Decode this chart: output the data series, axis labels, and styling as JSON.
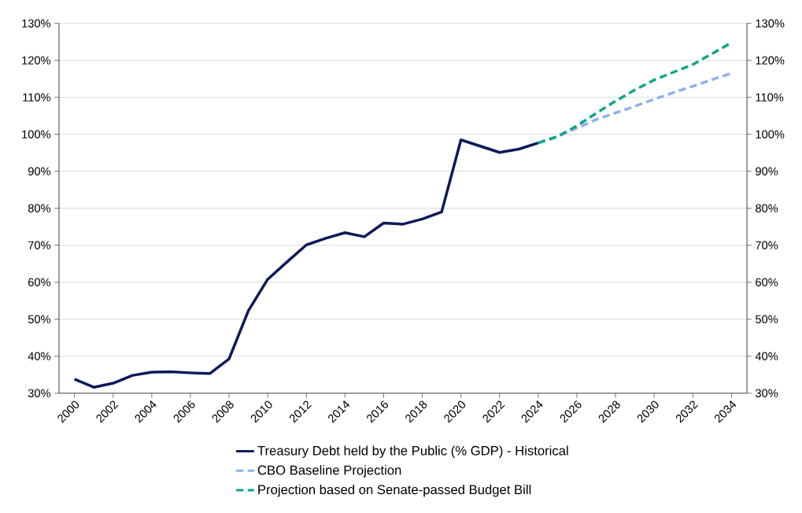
{
  "chart_data": {
    "type": "line",
    "xlim": [
      1999.2,
      2034.8
    ],
    "xticks": [
      2000,
      2002,
      2004,
      2006,
      2008,
      2010,
      2012,
      2014,
      2016,
      2018,
      2020,
      2022,
      2024,
      2026,
      2028,
      2030,
      2032,
      2034
    ],
    "ylim": [
      30,
      130
    ],
    "yticks": [
      {
        "value": 30,
        "label": "30%"
      },
      {
        "value": 40,
        "label": "40%"
      },
      {
        "value": 50,
        "label": "50%"
      },
      {
        "value": 60,
        "label": "60%"
      },
      {
        "value": 70,
        "label": "70%"
      },
      {
        "value": 80,
        "label": "80%"
      },
      {
        "value": 90,
        "label": "90%"
      },
      {
        "value": 100,
        "label": "100%"
      },
      {
        "value": 110,
        "label": "110%"
      },
      {
        "value": 120,
        "label": "120%"
      },
      {
        "value": 130,
        "label": "130%"
      }
    ],
    "y2lim": [
      30,
      130
    ],
    "y2ticks": [
      {
        "value": 30,
        "label": "30%"
      },
      {
        "value": 40,
        "label": "40%"
      },
      {
        "value": 50,
        "label": "50%"
      },
      {
        "value": 60,
        "label": "60%"
      },
      {
        "value": 70,
        "label": "70%"
      },
      {
        "value": 80,
        "label": "80%"
      },
      {
        "value": 90,
        "label": "90%"
      },
      {
        "value": 100,
        "label": "100%"
      },
      {
        "value": 110,
        "label": "110%"
      },
      {
        "value": 120,
        "label": "120%"
      },
      {
        "value": 130,
        "label": "130%"
      }
    ],
    "grid": "y",
    "legend": "bottom",
    "marker": "none",
    "series": [
      {
        "name": "Treasury Debt held by the Public (% GDP) - Historical",
        "color": "#0b1a5a",
        "line_style": "solid",
        "x": [
          2000,
          2001,
          2002,
          2003,
          2004,
          2005,
          2006,
          2007,
          2008,
          2009,
          2010,
          2011,
          2012,
          2013,
          2014,
          2015,
          2016,
          2017,
          2018,
          2019,
          2020,
          2021,
          2022,
          2023,
          2024
        ],
        "values": [
          33.8,
          31.6,
          32.7,
          34.8,
          35.7,
          35.8,
          35.5,
          35.3,
          39.3,
          52.3,
          60.8,
          65.5,
          70.1,
          71.9,
          73.4,
          72.3,
          76.0,
          75.7,
          77.1,
          79.0,
          98.5,
          96.8,
          95.1,
          96.0,
          97.7
        ]
      },
      {
        "name": "CBO Baseline Projection",
        "color": "#8fb0f5",
        "line_style": "dashed",
        "x": [
          2024,
          2025,
          2026,
          2027,
          2028,
          2029,
          2030,
          2031,
          2032,
          2033,
          2034
        ],
        "values": [
          97.7,
          99.4,
          101.7,
          104.0,
          105.8,
          107.6,
          109.5,
          111.3,
          113.0,
          114.8,
          116.5
        ]
      },
      {
        "name": "Projection based on Senate-passed Budget Bill",
        "color": "#0ea68a",
        "line_style": "dashed",
        "x": [
          2024,
          2025,
          2026,
          2027,
          2028,
          2029,
          2030,
          2031,
          2032,
          2033,
          2034
        ],
        "values": [
          97.7,
          99.4,
          102.3,
          105.7,
          109.0,
          112.0,
          114.7,
          116.8,
          118.9,
          121.8,
          124.8
        ]
      }
    ]
  }
}
